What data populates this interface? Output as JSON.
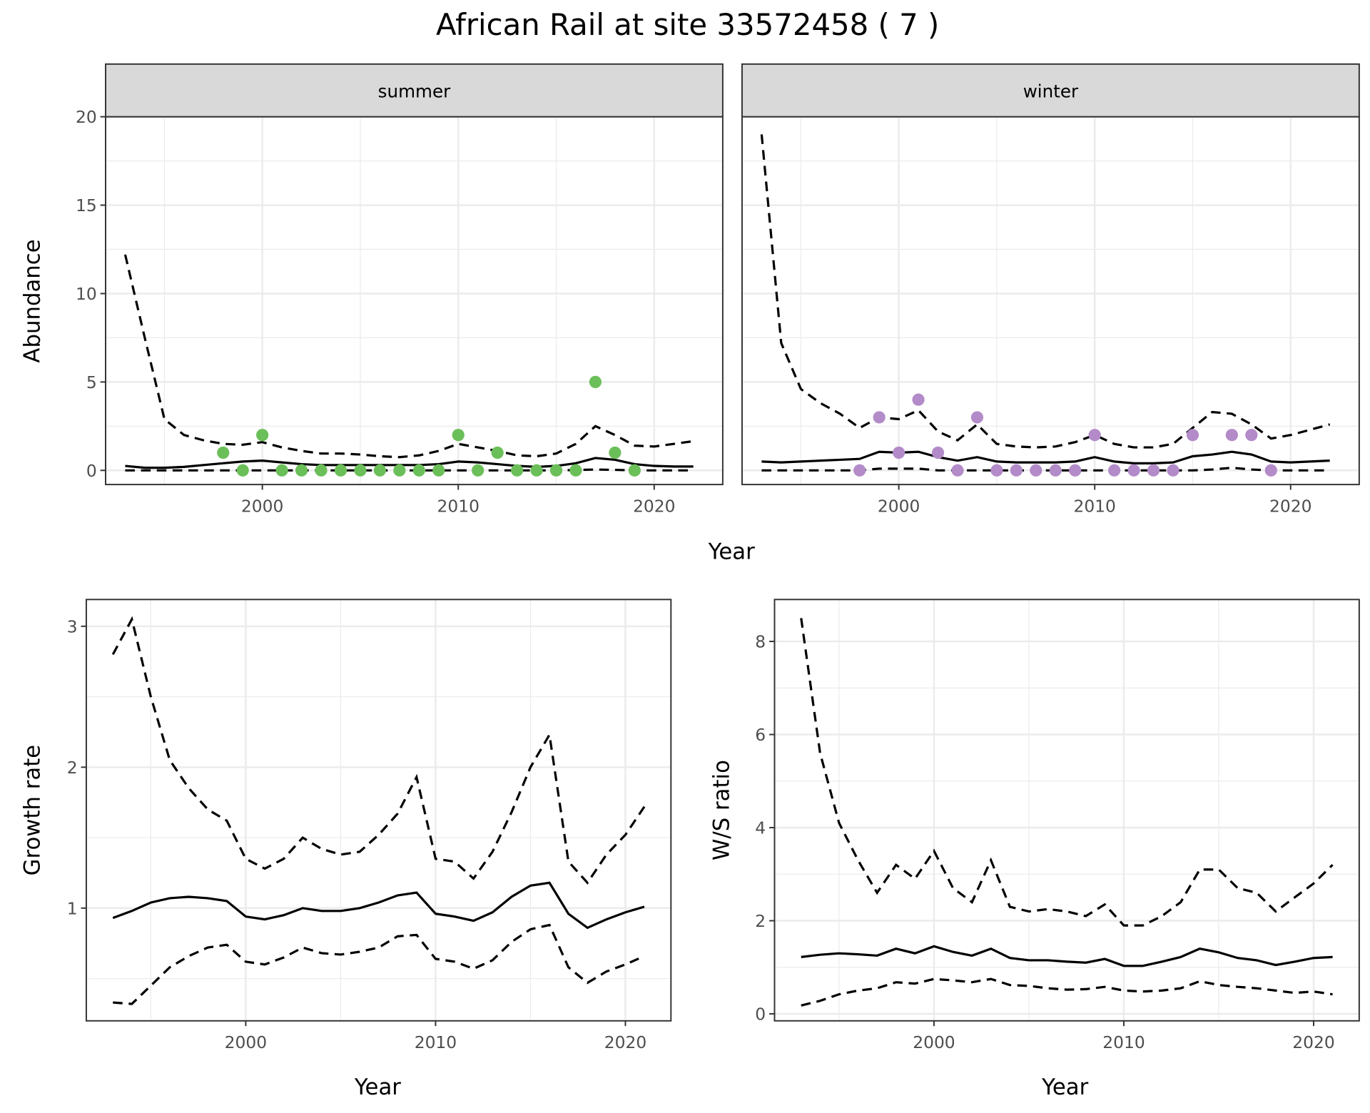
{
  "title": "African Rail at site 33572458 ( 7 )",
  "colors": {
    "summer": "#6BBF59",
    "winter": "#B38BC9",
    "line": "#000000",
    "grid": "#EBEBEB",
    "strip": "#D9D9D9"
  },
  "chart_data": [
    {
      "type": "line",
      "facet": "summer",
      "xlabel": "Year",
      "ylabel": "Abundance",
      "xlim": [
        1992,
        2023.5
      ],
      "ylim": [
        -0.8,
        20
      ],
      "xticks": [
        2000,
        2010,
        2020
      ],
      "yticks": [
        0,
        5,
        10,
        15,
        20
      ],
      "grid": true,
      "x": [
        1993,
        1994,
        1995,
        1996,
        1997,
        1998,
        1999,
        2000,
        2001,
        2002,
        2003,
        2004,
        2005,
        2006,
        2007,
        2008,
        2009,
        2010,
        2011,
        2012,
        2013,
        2014,
        2015,
        2016,
        2017,
        2018,
        2019,
        2020,
        2021,
        2022
      ],
      "upper": [
        12.2,
        7.5,
        2.9,
        2.0,
        1.7,
        1.5,
        1.45,
        1.6,
        1.3,
        1.1,
        0.95,
        0.95,
        0.9,
        0.8,
        0.75,
        0.85,
        1.1,
        1.5,
        1.3,
        1.1,
        0.85,
        0.8,
        0.95,
        1.5,
        2.5,
        2.0,
        1.4,
        1.35,
        1.5,
        1.65
      ],
      "mean": [
        0.25,
        0.15,
        0.15,
        0.2,
        0.3,
        0.4,
        0.5,
        0.55,
        0.45,
        0.35,
        0.3,
        0.3,
        0.3,
        0.3,
        0.3,
        0.3,
        0.35,
        0.5,
        0.45,
        0.35,
        0.25,
        0.2,
        0.25,
        0.4,
        0.7,
        0.6,
        0.35,
        0.25,
        0.22,
        0.22
      ],
      "lower": [
        0,
        0,
        0,
        0,
        0,
        0,
        0,
        0,
        0,
        0,
        0,
        0,
        0,
        0,
        0,
        0,
        0,
        0,
        0,
        0,
        0,
        0,
        0,
        0.02,
        0.05,
        0.03,
        0,
        0,
        0,
        0
      ],
      "points": {
        "x": [
          1998,
          1999,
          2000,
          2001,
          2002,
          2003,
          2004,
          2005,
          2006,
          2007,
          2008,
          2009,
          2010,
          2011,
          2012,
          2013,
          2014,
          2015,
          2016,
          2017,
          2018,
          2019
        ],
        "y": [
          1,
          0,
          2,
          0,
          0,
          0,
          0,
          0,
          0,
          0,
          0,
          0,
          2,
          0,
          1,
          0,
          0,
          0,
          0,
          5,
          1,
          0
        ]
      }
    },
    {
      "type": "line",
      "facet": "winter",
      "xlabel": "Year",
      "ylabel": "Abundance",
      "xlim": [
        1992,
        2023.5
      ],
      "ylim": [
        -0.8,
        20
      ],
      "xticks": [
        2000,
        2010,
        2020
      ],
      "yticks": [
        0,
        5,
        10,
        15,
        20
      ],
      "grid": true,
      "x": [
        1993,
        1994,
        1995,
        1996,
        1997,
        1998,
        1999,
        2000,
        2001,
        2002,
        2003,
        2004,
        2005,
        2006,
        2007,
        2008,
        2009,
        2010,
        2011,
        2012,
        2013,
        2014,
        2015,
        2016,
        2017,
        2018,
        2019,
        2020,
        2021,
        2022
      ],
      "upper": [
        19,
        7.2,
        4.6,
        3.8,
        3.2,
        2.4,
        3.0,
        2.9,
        3.4,
        2.2,
        1.7,
        2.6,
        1.5,
        1.35,
        1.3,
        1.35,
        1.6,
        2.0,
        1.5,
        1.3,
        1.3,
        1.5,
        2.4,
        3.3,
        3.2,
        2.6,
        1.8,
        2.0,
        2.3,
        2.6
      ],
      "mean": [
        0.5,
        0.45,
        0.5,
        0.55,
        0.6,
        0.65,
        1.05,
        1.0,
        1.05,
        0.75,
        0.55,
        0.75,
        0.5,
        0.45,
        0.45,
        0.45,
        0.5,
        0.75,
        0.5,
        0.4,
        0.4,
        0.45,
        0.8,
        0.9,
        1.05,
        0.9,
        0.5,
        0.45,
        0.5,
        0.55
      ],
      "lower": [
        0,
        0,
        0,
        0,
        0,
        0,
        0.1,
        0.1,
        0.1,
        0,
        0,
        0,
        0,
        0,
        0,
        0,
        0,
        0,
        0,
        0,
        0,
        0,
        0,
        0.05,
        0.15,
        0.05,
        0,
        0,
        0,
        0
      ],
      "points": {
        "x": [
          1998,
          1999,
          2000,
          2001,
          2002,
          2003,
          2004,
          2005,
          2006,
          2007,
          2008,
          2009,
          2010,
          2011,
          2012,
          2013,
          2014,
          2015,
          2017,
          2018,
          2019
        ],
        "y": [
          0,
          3,
          1,
          4,
          1,
          0,
          3,
          0,
          0,
          0,
          0,
          0,
          2,
          0,
          0,
          0,
          0,
          2,
          2,
          2,
          0
        ]
      }
    },
    {
      "type": "line",
      "xlabel": "Year",
      "ylabel": "Growth rate",
      "xlim": [
        1991.6,
        2022.4
      ],
      "ylim": [
        0.2,
        3.19
      ],
      "xticks": [
        2000,
        2010,
        2020
      ],
      "yticks": [
        1,
        2,
        3
      ],
      "grid": true,
      "x": [
        1993,
        1994,
        1995,
        1996,
        1997,
        1998,
        1999,
        2000,
        2001,
        2002,
        2003,
        2004,
        2005,
        2006,
        2007,
        2008,
        2009,
        2010,
        2011,
        2012,
        2013,
        2014,
        2015,
        2016,
        2017,
        2018,
        2019,
        2020,
        2021
      ],
      "upper": [
        2.8,
        3.05,
        2.5,
        2.05,
        1.85,
        1.7,
        1.62,
        1.35,
        1.28,
        1.35,
        1.5,
        1.42,
        1.38,
        1.4,
        1.52,
        1.67,
        1.93,
        1.35,
        1.33,
        1.21,
        1.4,
        1.68,
        2.0,
        2.23,
        1.33,
        1.18,
        1.38,
        1.52,
        1.72
      ],
      "mean": [
        0.93,
        0.98,
        1.04,
        1.07,
        1.08,
        1.07,
        1.05,
        0.94,
        0.92,
        0.95,
        1.0,
        0.98,
        0.98,
        1.0,
        1.04,
        1.09,
        1.11,
        0.96,
        0.94,
        0.91,
        0.97,
        1.08,
        1.16,
        1.18,
        0.96,
        0.86,
        0.92,
        0.97,
        1.01
      ],
      "lower": [
        0.33,
        0.32,
        0.45,
        0.58,
        0.66,
        0.72,
        0.74,
        0.62,
        0.6,
        0.65,
        0.72,
        0.68,
        0.67,
        0.69,
        0.72,
        0.8,
        0.81,
        0.64,
        0.62,
        0.57,
        0.63,
        0.76,
        0.85,
        0.88,
        0.58,
        0.47,
        0.55,
        0.6,
        0.66
      ]
    },
    {
      "type": "line",
      "xlabel": "Year",
      "ylabel": "W/S ratio",
      "xlim": [
        1991.6,
        2022.4
      ],
      "ylim": [
        -0.15,
        8.9
      ],
      "xticks": [
        2000,
        2010,
        2020
      ],
      "yticks": [
        0,
        2,
        4,
        6,
        8
      ],
      "grid": true,
      "x": [
        1993,
        1994,
        1995,
        1996,
        1997,
        1998,
        1999,
        2000,
        2001,
        2002,
        2003,
        2004,
        2005,
        2006,
        2007,
        2008,
        2009,
        2010,
        2011,
        2012,
        2013,
        2014,
        2015,
        2016,
        2017,
        2018,
        2019,
        2020,
        2021
      ],
      "upper": [
        8.5,
        5.6,
        4.1,
        3.3,
        2.6,
        3.2,
        2.9,
        3.5,
        2.7,
        2.4,
        3.3,
        2.3,
        2.2,
        2.25,
        2.2,
        2.1,
        2.35,
        1.9,
        1.9,
        2.1,
        2.4,
        3.1,
        3.1,
        2.7,
        2.6,
        2.2,
        2.5,
        2.8,
        3.2
      ],
      "mean": [
        1.22,
        1.27,
        1.3,
        1.28,
        1.25,
        1.4,
        1.3,
        1.45,
        1.33,
        1.25,
        1.4,
        1.2,
        1.15,
        1.15,
        1.12,
        1.1,
        1.18,
        1.03,
        1.03,
        1.12,
        1.22,
        1.4,
        1.32,
        1.2,
        1.15,
        1.05,
        1.12,
        1.2,
        1.22
      ],
      "lower": [
        0.18,
        0.28,
        0.42,
        0.5,
        0.55,
        0.68,
        0.65,
        0.75,
        0.72,
        0.68,
        0.75,
        0.62,
        0.6,
        0.55,
        0.52,
        0.53,
        0.58,
        0.5,
        0.48,
        0.5,
        0.55,
        0.7,
        0.62,
        0.58,
        0.55,
        0.5,
        0.45,
        0.48,
        0.42
      ]
    }
  ]
}
